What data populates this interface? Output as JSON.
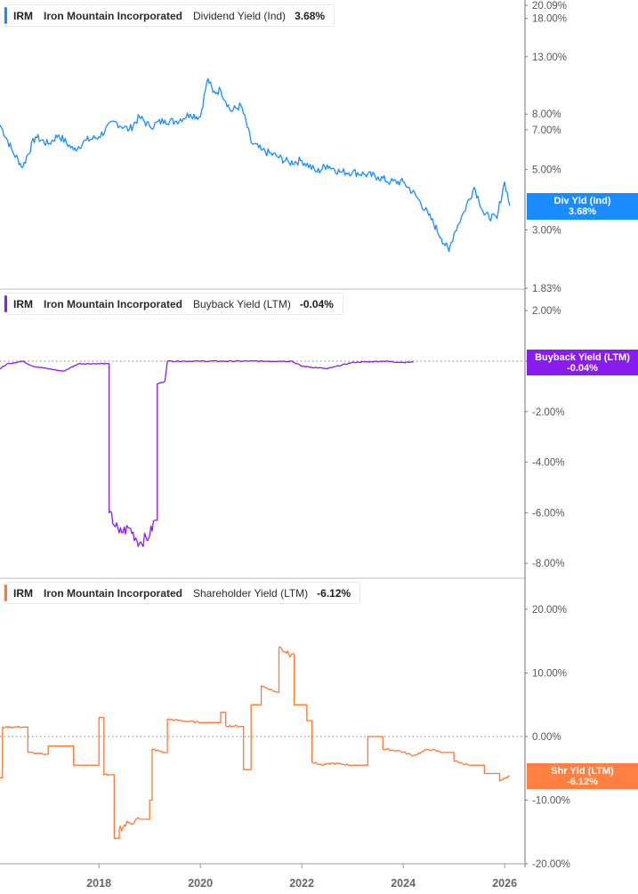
{
  "chart_data": [
    {
      "type": "line",
      "title": "IRM Iron Mountain Incorporated Dividend Yield (Ind)",
      "ticker": "IRM",
      "company": "Iron Mountain Incorporated",
      "metric": "Dividend Yield (Ind)",
      "current_value": "3.68%",
      "badge_label": "Div Yld (Ind)",
      "badge_value": "3.68%",
      "color": "#1a8cff",
      "yscale": "log",
      "yticks": [
        "20.09%",
        "18.00%",
        "13.00%",
        "8.00%",
        "7.00%",
        "5.00%",
        "3.00%",
        "1.83%"
      ],
      "ylim": [
        1.83,
        20.09
      ],
      "x": [
        2016.05,
        2016.3,
        2016.5,
        2016.75,
        2017.0,
        2017.2,
        2017.5,
        2017.75,
        2018.0,
        2018.3,
        2018.6,
        2018.8,
        2019.0,
        2019.3,
        2019.5,
        2019.8,
        2020.0,
        2020.15,
        2020.25,
        2020.4,
        2020.6,
        2020.8,
        2021.0,
        2021.2,
        2021.5,
        2021.75,
        2022.0,
        2022.3,
        2022.5,
        2022.75,
        2023.0,
        2023.25,
        2023.5,
        2023.75,
        2024.0,
        2024.25,
        2024.5,
        2024.75,
        2024.9,
        2025.0,
        2025.2,
        2025.4,
        2025.6,
        2025.85,
        2026.0,
        2026.1
      ],
      "values": [
        7.3,
        5.8,
        5.1,
        6.6,
        6.2,
        6.7,
        5.9,
        6.4,
        6.6,
        7.5,
        7.0,
        7.8,
        7.2,
        7.6,
        7.5,
        8.0,
        7.8,
        10.8,
        9.6,
        9.8,
        8.2,
        8.6,
        6.3,
        5.9,
        5.6,
        5.3,
        5.4,
        4.9,
        5.2,
        4.9,
        4.9,
        4.8,
        4.7,
        4.5,
        4.5,
        4.0,
        3.4,
        2.8,
        2.5,
        2.9,
        3.5,
        4.3,
        3.4,
        3.3,
        4.5,
        3.68
      ],
      "x_ticks": [
        "2018",
        "2020",
        "2022",
        "2024",
        "2026"
      ]
    },
    {
      "type": "line",
      "title": "IRM Iron Mountain Incorporated Buyback Yield (LTM)",
      "ticker": "IRM",
      "company": "Iron Mountain Incorporated",
      "metric": "Buyback Yield (LTM)",
      "current_value": "-0.04%",
      "badge_label": "Buyback Yield (LTM)",
      "badge_value": "-0.04%",
      "color": "#8a1cf2",
      "yscale": "linear",
      "yticks": [
        "2.00%",
        "0.00%",
        "-2.00%",
        "-4.00%",
        "-6.00%",
        "-8.00%"
      ],
      "ylim": [
        -8.5,
        2.7
      ],
      "reference_line": 0,
      "x": [
        2016.05,
        2016.2,
        2016.5,
        2016.7,
        2017.0,
        2017.3,
        2017.6,
        2018.0,
        2018.15,
        2018.2,
        2018.4,
        2018.6,
        2018.8,
        2019.0,
        2019.1,
        2019.15,
        2019.3,
        2019.35,
        2020.0,
        2021.0,
        2021.8,
        2022.0,
        2022.5,
        2023.0,
        2023.6,
        2024.0,
        2024.2
      ],
      "values": [
        -0.3,
        -0.1,
        0.0,
        -0.2,
        -0.3,
        -0.4,
        -0.1,
        -0.1,
        -0.1,
        -6.0,
        -6.8,
        -6.6,
        -7.2,
        -6.9,
        -6.3,
        -0.9,
        -0.8,
        0.0,
        0.0,
        0.0,
        0.0,
        -0.2,
        -0.3,
        -0.05,
        0.0,
        -0.05,
        -0.04
      ]
    },
    {
      "type": "line",
      "title": "IRM Iron Mountain Incorporated Shareholder Yield (LTM)",
      "ticker": "IRM",
      "company": "Iron Mountain Incorporated",
      "metric": "Shareholder Yield (LTM)",
      "current_value": "-6.12%",
      "badge_label": "Shr Yld (LTM)",
      "badge_value": "-6.12%",
      "color": "#ff7733",
      "yscale": "linear",
      "yticks": [
        "20.00%",
        "10.00%",
        "0.00%",
        "-10.00%",
        "-20.00%"
      ],
      "ylim": [
        -20,
        25
      ],
      "reference_line": 0,
      "x": [
        2016.05,
        2016.1,
        2016.55,
        2016.6,
        2016.9,
        2017.0,
        2017.5,
        2018.0,
        2018.1,
        2018.2,
        2018.3,
        2018.4,
        2018.6,
        2018.8,
        2019.0,
        2019.05,
        2019.3,
        2019.35,
        2020.0,
        2020.4,
        2020.5,
        2020.8,
        2020.85,
        2021.0,
        2021.2,
        2021.5,
        2021.55,
        2021.8,
        2021.85,
        2022.1,
        2022.2,
        2022.4,
        2022.6,
        2023.0,
        2023.3,
        2023.6,
        2023.9,
        2024.2,
        2024.5,
        2024.8,
        2025.0,
        2025.3,
        2025.6,
        2025.9,
        2026.05,
        2026.1
      ],
      "values": [
        -6.5,
        1.5,
        1.5,
        -2.5,
        -2.8,
        -1.5,
        -4.5,
        3.0,
        -6.0,
        -6.0,
        -16.0,
        -14.5,
        -13.5,
        -13.0,
        -10.0,
        -2.0,
        -2.5,
        2.7,
        2.2,
        3.8,
        1.7,
        1.6,
        -5.2,
        5.0,
        8.0,
        7.0,
        14.0,
        13.0,
        5.0,
        2.5,
        -4.0,
        -4.5,
        -4.2,
        -4.5,
        0.0,
        -2.0,
        -2.2,
        -3.0,
        -2.0,
        -2.5,
        -3.8,
        -4.5,
        -5.8,
        -7.0,
        -6.5,
        -6.12
      ]
    }
  ],
  "x_axis": {
    "ticks": [
      {
        "label": "2018",
        "year": 2018
      },
      {
        "label": "2020",
        "year": 2020
      },
      {
        "label": "2022",
        "year": 2022
      },
      {
        "label": "2024",
        "year": 2024
      },
      {
        "label": "2026",
        "year": 2026
      }
    ]
  },
  "panels": [
    {
      "legend": {
        "ticker": "IRM",
        "company": "Iron Mountain Incorporated",
        "metric": "Dividend Yield (Ind)",
        "value": "3.68%"
      },
      "badge": {
        "label": "Div Yld (Ind)",
        "value": "3.68%"
      }
    },
    {
      "legend": {
        "ticker": "IRM",
        "company": "Iron Mountain Incorporated",
        "metric": "Buyback Yield (LTM)",
        "value": "-0.04%"
      },
      "badge": {
        "label": "Buyback Yield (LTM)",
        "value": "-0.04%"
      }
    },
    {
      "legend": {
        "ticker": "IRM",
        "company": "Iron Mountain Incorporated",
        "metric": "Shareholder Yield (LTM)",
        "value": "-6.12%"
      },
      "badge": {
        "label": "Shr Yld (LTM)",
        "value": "-6.12%"
      }
    }
  ]
}
